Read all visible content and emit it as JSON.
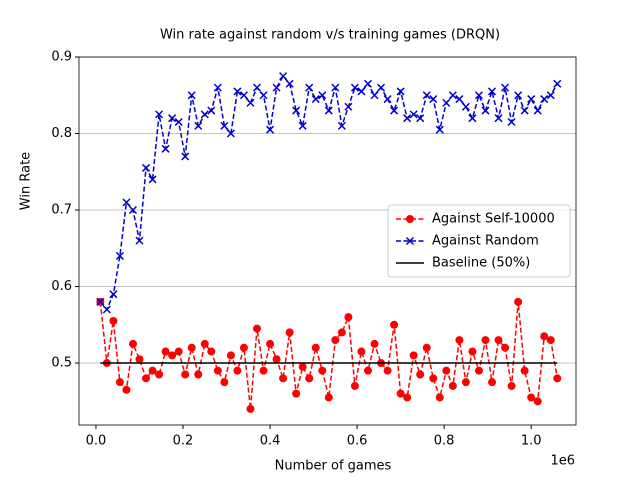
{
  "chart_data": {
    "type": "line",
    "title": "Win rate against random v/s training games (DRQN)",
    "xlabel": "Number of games",
    "ylabel": "Win Rate",
    "x_offset_label": "1e6",
    "x": [
      0.01,
      0.025,
      0.04,
      0.055,
      0.07,
      0.085,
      0.1,
      0.115,
      0.13,
      0.145,
      0.16,
      0.175,
      0.19,
      0.205,
      0.22,
      0.235,
      0.25,
      0.265,
      0.28,
      0.295,
      0.31,
      0.325,
      0.34,
      0.355,
      0.37,
      0.385,
      0.4,
      0.415,
      0.43,
      0.445,
      0.46,
      0.475,
      0.49,
      0.505,
      0.52,
      0.535,
      0.55,
      0.565,
      0.58,
      0.595,
      0.61,
      0.625,
      0.64,
      0.655,
      0.67,
      0.685,
      0.7,
      0.715,
      0.73,
      0.745,
      0.76,
      0.775,
      0.79,
      0.805,
      0.82,
      0.835,
      0.85,
      0.865,
      0.88,
      0.895,
      0.91,
      0.925,
      0.94,
      0.955,
      0.97,
      0.985,
      1.0,
      1.015,
      1.03,
      1.045,
      1.06
    ],
    "series": [
      {
        "name": "Against Self-10000",
        "color": "#ff0000",
        "marker": "circle",
        "dash": true,
        "values": [
          0.58,
          0.5,
          0.555,
          0.475,
          0.465,
          0.525,
          0.505,
          0.48,
          0.49,
          0.485,
          0.515,
          0.51,
          0.515,
          0.485,
          0.52,
          0.485,
          0.525,
          0.515,
          0.49,
          0.475,
          0.51,
          0.49,
          0.52,
          0.44,
          0.545,
          0.49,
          0.525,
          0.505,
          0.48,
          0.54,
          0.46,
          0.495,
          0.48,
          0.52,
          0.49,
          0.455,
          0.53,
          0.54,
          0.56,
          0.47,
          0.515,
          0.49,
          0.525,
          0.5,
          0.49,
          0.55,
          0.46,
          0.455,
          0.51,
          0.485,
          0.52,
          0.48,
          0.455,
          0.49,
          0.47,
          0.53,
          0.475,
          0.515,
          0.49,
          0.53,
          0.475,
          0.53,
          0.52,
          0.47,
          0.58,
          0.49,
          0.455,
          0.45,
          0.535,
          0.53,
          0.48
        ]
      },
      {
        "name": "Against Random",
        "color": "#0000cc",
        "marker": "x",
        "dash": true,
        "values": [
          0.58,
          0.57,
          0.59,
          0.64,
          0.71,
          0.7,
          0.66,
          0.755,
          0.74,
          0.825,
          0.78,
          0.82,
          0.815,
          0.77,
          0.85,
          0.81,
          0.825,
          0.83,
          0.86,
          0.81,
          0.8,
          0.855,
          0.85,
          0.84,
          0.86,
          0.85,
          0.805,
          0.86,
          0.875,
          0.865,
          0.83,
          0.81,
          0.86,
          0.845,
          0.85,
          0.83,
          0.86,
          0.81,
          0.835,
          0.86,
          0.855,
          0.865,
          0.85,
          0.86,
          0.845,
          0.83,
          0.855,
          0.82,
          0.825,
          0.82,
          0.85,
          0.845,
          0.805,
          0.84,
          0.85,
          0.845,
          0.835,
          0.82,
          0.85,
          0.83,
          0.855,
          0.82,
          0.86,
          0.815,
          0.85,
          0.83,
          0.845,
          0.83,
          0.845,
          0.85,
          0.865
        ]
      },
      {
        "name": "Baseline (50%)",
        "color": "#000000",
        "marker": "none",
        "dash": false,
        "x": [
          0.01,
          1.06
        ],
        "values": [
          0.5,
          0.5
        ]
      }
    ],
    "xlim": [
      -0.039,
      1.103
    ],
    "ylim": [
      0.419,
      0.9
    ],
    "xticks": [
      {
        "value": 0,
        "label": "0.0"
      },
      0.2,
      0.4,
      0.6,
      0.8,
      {
        "value": 1,
        "label": "1.0"
      }
    ],
    "yticks": [
      0.5,
      0.6,
      0.7,
      0.8,
      0.9
    ],
    "grid": "y",
    "legend": "center right"
  }
}
